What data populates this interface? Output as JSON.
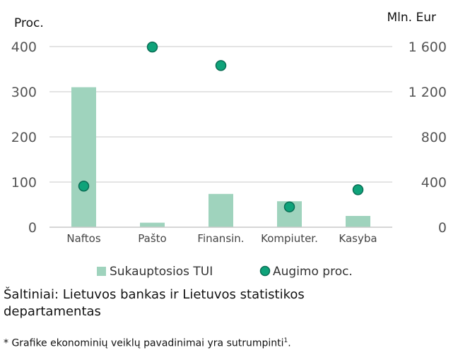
{
  "chart_data": {
    "type": "bar",
    "categories": [
      "Naftos",
      "Pašto",
      "Finansin.",
      "Kompiuter.",
      "Kasyba"
    ],
    "series": [
      {
        "name": "Sukauptosios TUI",
        "kind": "bar",
        "axis": "right",
        "values": [
          1240,
          40,
          295,
          230,
          100
        ]
      },
      {
        "name": "Augimo proc.",
        "kind": "scatter",
        "axis": "left",
        "values": [
          91,
          399,
          358,
          45,
          83
        ]
      }
    ],
    "y_left": {
      "label": "Proc.",
      "ylim": [
        0,
        400
      ],
      "ticks": [
        "0",
        "100",
        "200",
        "300",
        "400"
      ]
    },
    "y_right": {
      "label": "Mln. Eur",
      "ylim": [
        0,
        1600
      ],
      "ticks": [
        "0",
        "400",
        "800",
        "1 200",
        "1 600"
      ]
    },
    "grid": true,
    "legend": "bottom",
    "colors": {
      "bar": "#9fd3bd",
      "marker_fill": "#0fa37a",
      "marker_stroke": "#0a6e55",
      "grid": "#d4d4d4"
    }
  },
  "source_text": "Šaltiniai: Lietuvos bankas ir Lietuvos statistikos departamentas",
  "footnote": {
    "text": "* Grafike ekonominių veiklų pavadinimai yra sutrumpinti",
    "sup": "1",
    "end": "."
  }
}
